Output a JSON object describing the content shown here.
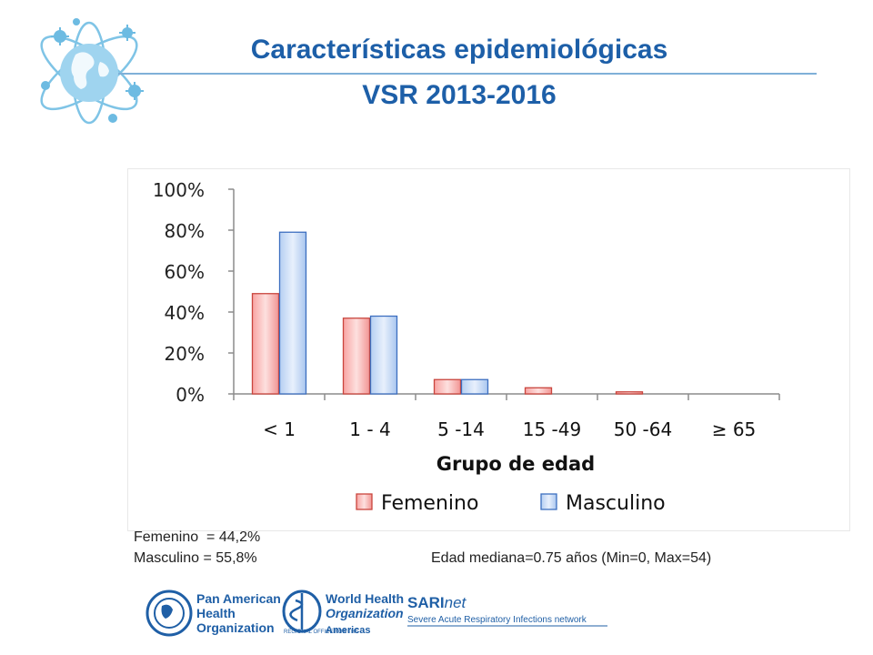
{
  "header": {
    "title_line1": "Características epidemiológicas",
    "title_line2": "VSR 2013-2016"
  },
  "colors": {
    "title": "#1d5fa8",
    "female": "#f7a9a8",
    "female_border": "#c9453d",
    "male": "#b9d2f3",
    "male_border": "#3d6fc0"
  },
  "chart_data": {
    "type": "bar",
    "categories": [
      "< 1",
      "1 - 4",
      "5 -14",
      "15 -49",
      "50 -64",
      "≥ 65"
    ],
    "series": [
      {
        "name": "Femenino",
        "values": [
          49,
          37,
          7,
          3,
          1,
          0
        ]
      },
      {
        "name": "Masculino",
        "values": [
          79,
          38,
          7,
          0,
          0,
          0
        ]
      }
    ],
    "xlabel": "Grupo de edad",
    "ylabel": "",
    "ylim": [
      0,
      100
    ],
    "yticks": [
      "0%",
      "20%",
      "40%",
      "60%",
      "80%",
      "100%"
    ],
    "ytick_values": [
      0,
      20,
      40,
      60,
      80,
      100
    ],
    "legend": "bottom",
    "grid": false
  },
  "stats": {
    "female_share": "Femenino  = 44,2%",
    "male_share": "Masculino = 55,8%",
    "median_age": "Edad mediana=0.75 años (Min=0, Max=54)"
  },
  "footer": {
    "paho_line1": "Pan American",
    "paho_line2": "Health",
    "paho_line3": "Organization",
    "who_line1": "World Health",
    "who_line2": "Organization",
    "who_regional": "REGIONAL OFFICE FOR THE",
    "who_americas": "Americas",
    "sari_main": "SARI",
    "sari_net": "net",
    "sari_sub": "Severe Acute Respiratory Infections network"
  }
}
